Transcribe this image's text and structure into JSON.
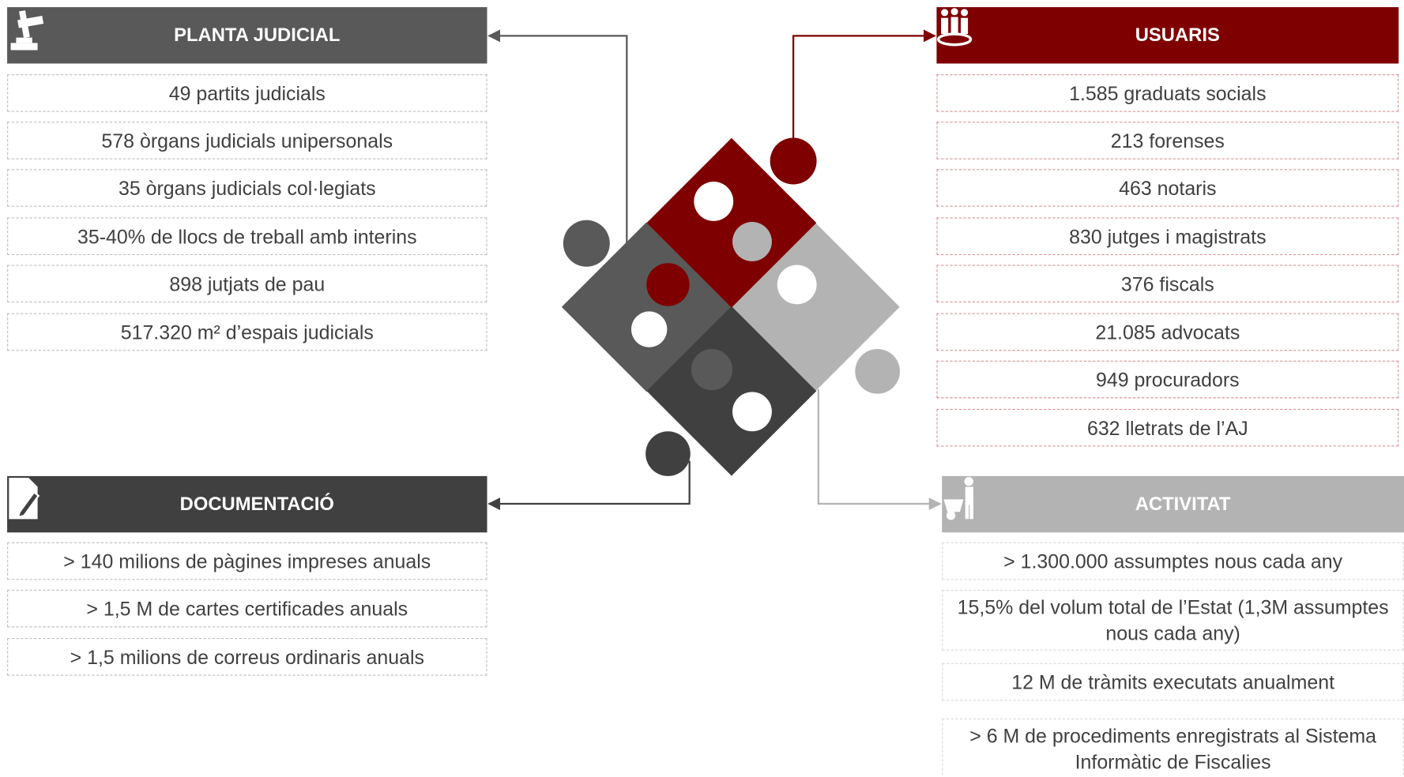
{
  "sections": [
    {
      "title": "PLANTA JUDICIAL",
      "items": [
        "49 partits judicials",
        "578 òrgans judicials unipersonals",
        "35 òrgans judicials col·legiats",
        "35-40% de llocs de treball amb interins",
        "898 jutjats de pau",
        "517.320 m² d’espais judicials"
      ]
    },
    {
      "title": "USUARIS",
      "items": [
        "1.585 graduats socials",
        "213 forenses",
        "463 notaris",
        "830 jutges i magistrats",
        "376 fiscals",
        "21.085 advocats",
        "949 procuradors",
        "632 lletrats de l’AJ"
      ]
    },
    {
      "title": "DOCUMENTACIÓ",
      "items": [
        "> 140 milions de pàgines impreses anuals",
        "> 1,5 M de cartes certificades anuals",
        "> 1,5 milions de correus ordinaris anuals"
      ]
    },
    {
      "title": "ACTIVITAT",
      "items": [
        "> 1.300.000 assumptes nous cada any",
        "15,5% del volum total de l’Estat (1,3M assumptes nous cada any)",
        "12 M de tràmits executats anualment",
        "> 6 M de procediments enregistrats al Sistema Informàtic de Fiscalies"
      ]
    }
  ]
}
